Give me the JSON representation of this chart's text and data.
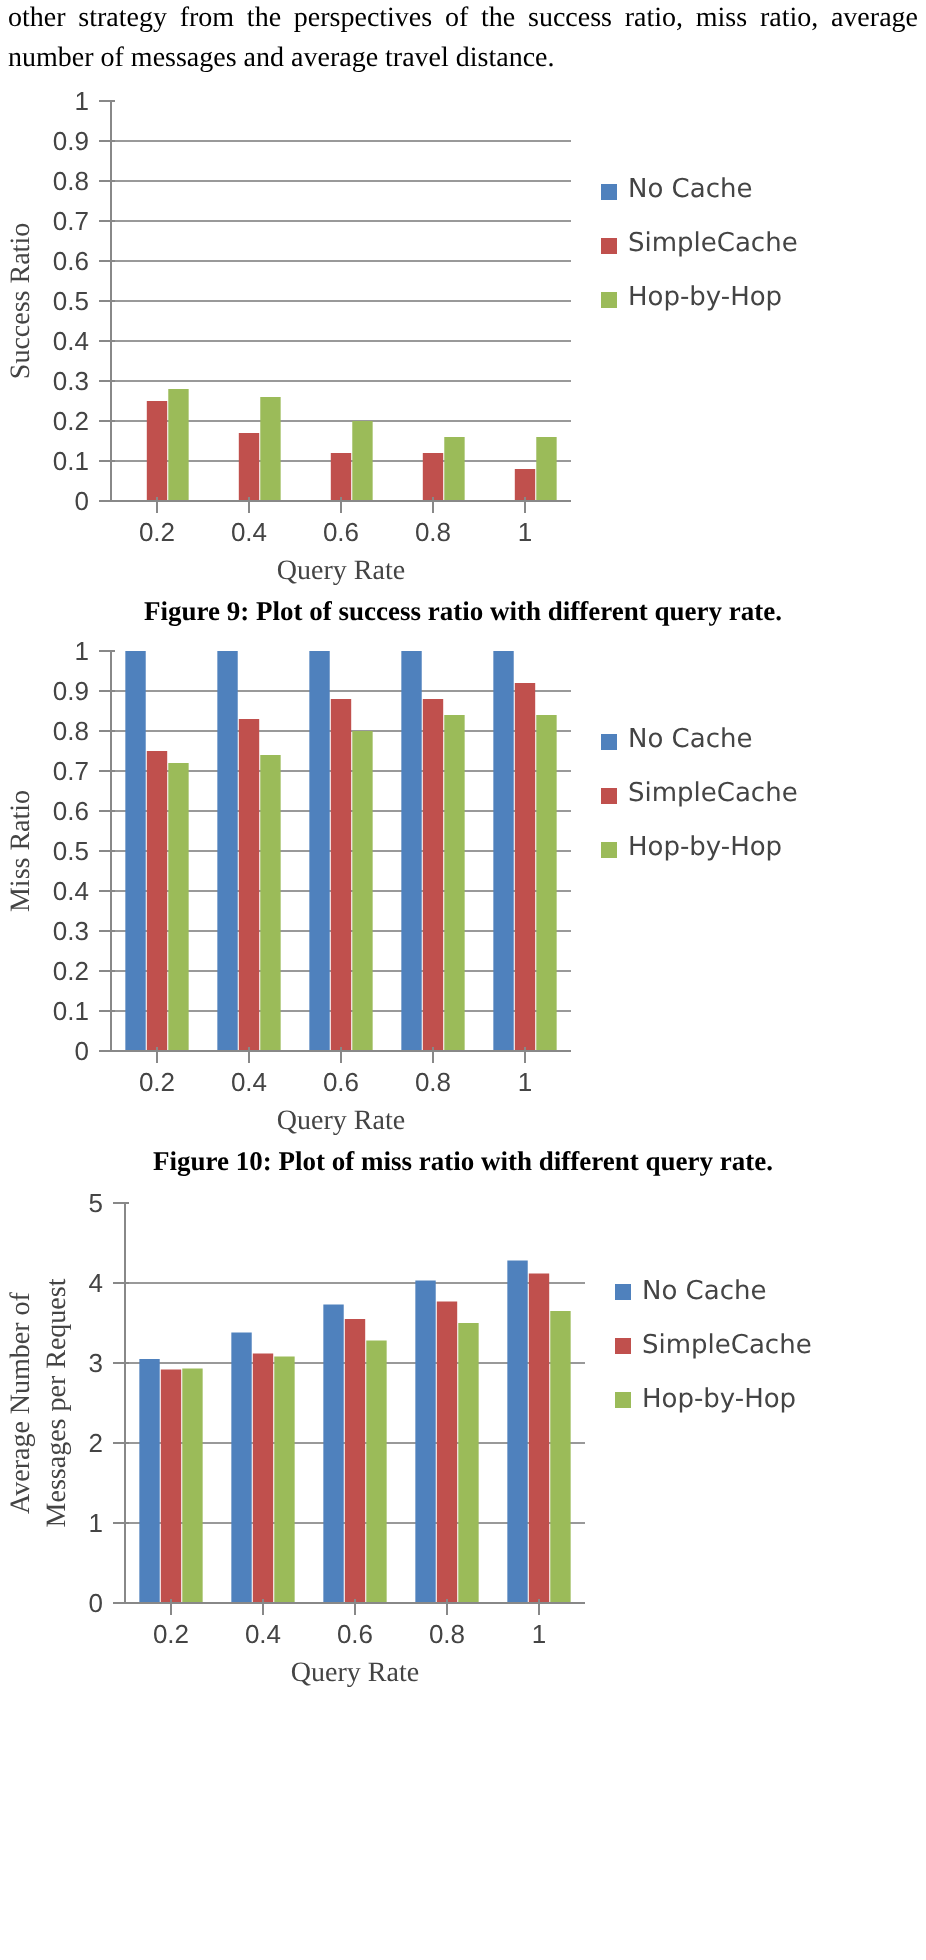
{
  "chart_data": [
    {
      "type": "bar",
      "ylabel": "Success Ratio",
      "xlabel": "Query Rate",
      "categories": [
        "0.2",
        "0.4",
        "0.6",
        "0.8",
        "1"
      ],
      "series": [
        {
          "name": "No Cache",
          "color": "#4f81bd",
          "values": [
            0,
            0,
            0,
            0,
            0
          ]
        },
        {
          "name": "SimpleCache",
          "color": "#c0504d",
          "values": [
            0.25,
            0.17,
            0.12,
            0.12,
            0.08
          ]
        },
        {
          "name": "Hop-by-Hop",
          "color": "#9bbb59",
          "values": [
            0.28,
            0.26,
            0.2,
            0.16,
            0.16
          ]
        }
      ],
      "ylim": [
        0,
        1
      ],
      "yticks": [
        0,
        0.1,
        0.2,
        0.3,
        0.4,
        0.5,
        0.6,
        0.7,
        0.8,
        0.9,
        1
      ],
      "grid": "y",
      "legend": "right",
      "annotations": [
        "other strategy from the perspectives of the success ratio, miss ratio, average number of messages and average travel distance.",
        "Figure 9: Plot of success ratio with different query rate."
      ]
    },
    {
      "type": "bar",
      "ylabel": "Miss Ratio",
      "xlabel": "Query Rate",
      "categories": [
        "0.2",
        "0.4",
        "0.6",
        "0.8",
        "1"
      ],
      "series": [
        {
          "name": "No Cache",
          "color": "#4f81bd",
          "values": [
            1,
            1,
            1,
            1,
            1
          ]
        },
        {
          "name": "SimpleCache",
          "color": "#c0504d",
          "values": [
            0.75,
            0.83,
            0.88,
            0.88,
            0.92
          ]
        },
        {
          "name": "Hop-by-Hop",
          "color": "#9bbb59",
          "values": [
            0.72,
            0.74,
            0.8,
            0.84,
            0.84
          ]
        }
      ],
      "ylim": [
        0,
        1
      ],
      "yticks": [
        0,
        0.1,
        0.2,
        0.3,
        0.4,
        0.5,
        0.6,
        0.7,
        0.8,
        0.9,
        1
      ],
      "grid": "y",
      "legend": "right",
      "annotations": [
        "Figure 10: Plot of miss ratio with different query rate."
      ]
    },
    {
      "type": "bar",
      "ylabel": "Average Number of Messages per Request",
      "xlabel": "Query Rate",
      "categories": [
        "0.2",
        "0.4",
        "0.6",
        "0.8",
        "1"
      ],
      "series": [
        {
          "name": "No Cache",
          "color": "#4f81bd",
          "values": [
            3.05,
            3.38,
            3.73,
            4.03,
            4.28
          ]
        },
        {
          "name": "SimpleCache",
          "color": "#c0504d",
          "values": [
            2.92,
            3.12,
            3.55,
            3.77,
            4.12
          ]
        },
        {
          "name": "Hop-by-Hop",
          "color": "#9bbb59",
          "values": [
            2.93,
            3.08,
            3.28,
            3.5,
            3.65
          ]
        }
      ],
      "ylim": [
        0,
        5
      ],
      "yticks": [
        0,
        1,
        2,
        3,
        4,
        5
      ],
      "grid": "y",
      "legend": "right"
    }
  ]
}
